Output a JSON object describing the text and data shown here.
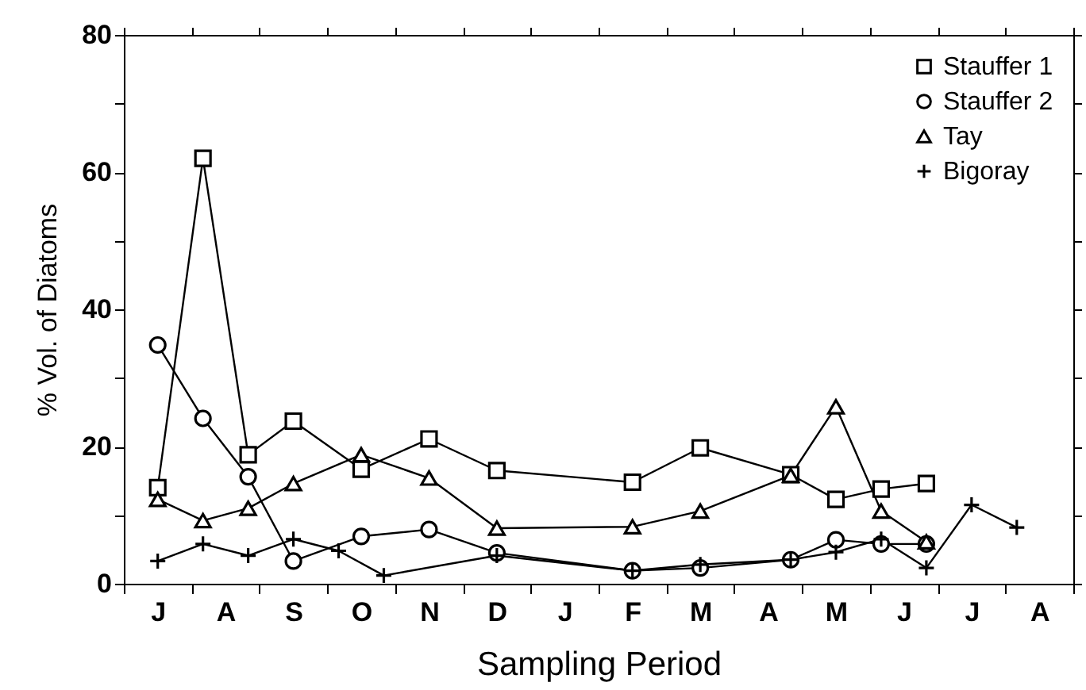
{
  "chart_data": {
    "type": "line",
    "xlabel": "Sampling Period",
    "ylabel": "% Vol. of Diatoms",
    "ylim": [
      0,
      80
    ],
    "categories": [
      null,
      "J",
      null,
      null,
      "A",
      null,
      null,
      "S",
      null,
      null,
      "O",
      null,
      null,
      "N",
      null,
      null,
      "D",
      null,
      null,
      "J",
      null,
      null,
      "F",
      null,
      null,
      "M",
      null,
      null,
      "A",
      null,
      null,
      "M",
      null,
      null,
      "J",
      null,
      null,
      "J",
      null,
      null,
      "A",
      null
    ],
    "yticks": [
      0,
      {
        "value": 10,
        "label": null
      },
      20,
      {
        "value": 30,
        "label": null
      },
      40,
      {
        "value": 50,
        "label": null
      },
      60,
      {
        "value": 70,
        "label": null
      },
      80
    ],
    "grid": false,
    "legend": "top right",
    "line_style": "solid",
    "series": [
      {
        "name": "Stauffer 1",
        "color": "#000000",
        "marker": "square",
        "values": [
          null,
          14,
          null,
          62,
          null,
          18.8,
          null,
          23.7,
          null,
          null,
          16.7,
          null,
          null,
          21.1,
          null,
          null,
          16.5,
          null,
          null,
          null,
          null,
          null,
          14.8,
          null,
          null,
          19.8,
          null,
          null,
          null,
          15.9,
          null,
          12.3,
          null,
          13.8,
          null,
          14.6,
          null,
          null,
          null,
          null,
          null,
          null
        ]
      },
      {
        "name": "Stauffer 2",
        "color": "#000000",
        "marker": "circle",
        "values": [
          null,
          34.8,
          null,
          24.1,
          null,
          15.6,
          null,
          3.3,
          null,
          null,
          6.9,
          null,
          null,
          7.9,
          null,
          null,
          4.5,
          null,
          null,
          null,
          null,
          null,
          1.9,
          null,
          null,
          2.3,
          null,
          null,
          null,
          3.5,
          null,
          6.4,
          null,
          5.8,
          null,
          5.8,
          null,
          null,
          null,
          null,
          null,
          null
        ]
      },
      {
        "name": "Tay",
        "color": "#000000",
        "marker": "triangle",
        "values": [
          null,
          12.3,
          null,
          9.2,
          null,
          11.0,
          null,
          14.6,
          null,
          null,
          18.8,
          null,
          null,
          15.4,
          null,
          null,
          8.1,
          null,
          null,
          null,
          null,
          null,
          8.3,
          null,
          null,
          10.6,
          null,
          null,
          null,
          15.8,
          null,
          25.8,
          null,
          10.6,
          null,
          6.1,
          null,
          null,
          null,
          null,
          null,
          null
        ]
      },
      {
        "name": "Bigoray",
        "color": "#000000",
        "marker": "cross",
        "values": [
          null,
          3.3,
          null,
          5.8,
          null,
          4.1,
          null,
          6.5,
          null,
          4.8,
          null,
          1.2,
          null,
          null,
          null,
          null,
          4.1,
          null,
          null,
          null,
          null,
          null,
          1.9,
          null,
          null,
          2.8,
          null,
          null,
          null,
          3.5,
          null,
          4.6,
          null,
          6.5,
          null,
          2.3,
          null,
          11.5,
          null,
          8.2,
          null,
          null
        ]
      }
    ]
  }
}
